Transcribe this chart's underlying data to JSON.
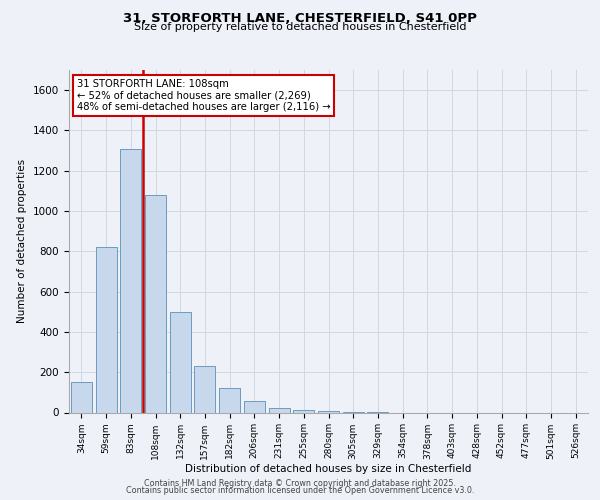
{
  "title_line1": "31, STORFORTH LANE, CHESTERFIELD, S41 0PP",
  "title_line2": "Size of property relative to detached houses in Chesterfield",
  "xlabel": "Distribution of detached houses by size in Chesterfield",
  "ylabel": "Number of detached properties",
  "footer_line1": "Contains HM Land Registry data © Crown copyright and database right 2025.",
  "footer_line2": "Contains public sector information licensed under the Open Government Licence v3.0.",
  "property_label": "31 STORFORTH LANE: 108sqm",
  "annotation_line1": "← 52% of detached houses are smaller (2,269)",
  "annotation_line2": "48% of semi-detached houses are larger (2,116) →",
  "bar_color": "#c8d8ec",
  "bar_edge_color": "#6a9cc0",
  "vline_color": "#cc0000",
  "annotation_box_edge": "#cc0000",
  "categories": [
    "34sqm",
    "59sqm",
    "83sqm",
    "108sqm",
    "132sqm",
    "157sqm",
    "182sqm",
    "206sqm",
    "231sqm",
    "255sqm",
    "280sqm",
    "305sqm",
    "329sqm",
    "354sqm",
    "378sqm",
    "403sqm",
    "428sqm",
    "452sqm",
    "477sqm",
    "501sqm",
    "526sqm"
  ],
  "values": [
    150,
    820,
    1310,
    1080,
    500,
    230,
    120,
    55,
    20,
    10,
    5,
    2,
    1,
    0,
    0,
    0,
    0,
    0,
    0,
    0,
    0
  ],
  "vline_index": 3,
  "ylim": [
    0,
    1700
  ],
  "yticks": [
    0,
    200,
    400,
    600,
    800,
    1000,
    1200,
    1400,
    1600
  ],
  "background_color": "#eef2f8",
  "plot_background": "#eef2f8",
  "grid_color": "#d0d8e4"
}
